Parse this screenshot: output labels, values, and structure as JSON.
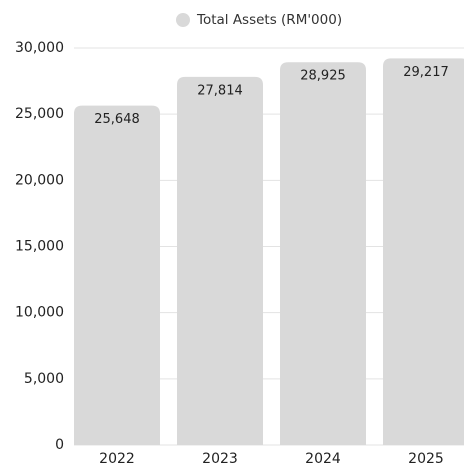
{
  "chart_data": {
    "type": "bar",
    "categories": [
      "2022",
      "2023",
      "2024",
      "2025"
    ],
    "series": [
      {
        "name": "Total Assets (RM'000)",
        "color": "#d9d9d9",
        "values": [
          25648,
          27814,
          28925,
          29217
        ],
        "value_labels": [
          "25,648",
          "27,814",
          "28,925",
          "29,217"
        ]
      }
    ],
    "ylim": [
      0,
      30000
    ],
    "yticks": [
      0,
      {
        "value": 5000,
        "label": "5,000"
      },
      {
        "value": 10000,
        "label": "10,000"
      },
      {
        "value": 15000,
        "label": "15,000"
      },
      {
        "value": 20000,
        "label": "20,000"
      },
      {
        "value": 25000,
        "label": "25,000"
      },
      {
        "value": 30000,
        "label": "30,000"
      }
    ],
    "grid": true,
    "legend": "top"
  }
}
